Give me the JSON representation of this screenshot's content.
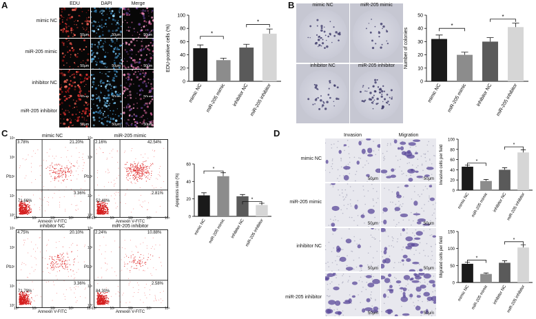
{
  "panels": {
    "A": {
      "letter": "A",
      "columns": [
        "EDU",
        "DAPI",
        "Merge"
      ],
      "rows": [
        "mimic NC",
        "miR-205 mimic",
        "inhibitor NC",
        "miR-205 inhibitor"
      ],
      "scale_label": "50μm"
    },
    "B": {
      "letter": "B",
      "dishes": [
        "mimic NC",
        "miR-205 mimic",
        "inhibitor NC",
        "miR-205 inhibitor"
      ]
    },
    "C": {
      "letter": "C",
      "plots": [
        {
          "title": "mimic NC",
          "ul": "3.78%",
          "ur": "21.20%",
          "lr": "3.36%",
          "ll": "71.66%"
        },
        {
          "title": "miR-205 mimic",
          "ul": "2.16%",
          "ur": "42.54%",
          "lr": "2.81%",
          "ll": "52.48%"
        },
        {
          "title": "inhibitor NC",
          "ul": "4.75%",
          "ur": "20.10%",
          "lr": "3.36%",
          "ll": "71.79%"
        },
        {
          "title": "miR-205 inhibitor",
          "ul": "2.24%",
          "ur": "10.88%",
          "lr": "2.58%",
          "ll": "84.30%"
        }
      ],
      "xlabel": "Annexin V-FITC",
      "ylabel": "PI",
      "ticks": [
        "10⁰",
        "10¹",
        "10²",
        "10³",
        "10⁴"
      ]
    },
    "D": {
      "letter": "D",
      "columns": [
        "Invasion",
        "Migration"
      ],
      "rows": [
        "mimic NC",
        "miR-205 mimic",
        "inhibitor NC",
        "miR-205 inhibitor"
      ],
      "scale_label": "50μm"
    }
  },
  "star": "*",
  "colors": {
    "mimic_nc": "#1a1a1a",
    "mir205_mimic": "#8c8c8c",
    "inhibitor_nc": "#5a5a5a",
    "mir205_inhibitor": "#d6d6d6"
  },
  "chart_data": [
    {
      "type": "bar",
      "categories": [
        "mimic NC",
        "miR-205 mimic",
        "inhibitor NC",
        "miR-205 inhibitor"
      ],
      "values": [
        50,
        32,
        51,
        72
      ],
      "errors": [
        5,
        3,
        5,
        7
      ],
      "ylabel": "EDU-positive cells (%)",
      "ylim": [
        0,
        100
      ],
      "yticks": [
        0,
        20,
        40,
        60,
        80,
        100
      ]
    },
    {
      "type": "bar",
      "categories": [
        "mimic NC",
        "miR-205 mimic",
        "inhibitor NC",
        "miR-205 inhibitor"
      ],
      "values": [
        32,
        20,
        30,
        41
      ],
      "errors": [
        3,
        2,
        3,
        3
      ],
      "ylabel": "Number of colonies",
      "ylim": [
        0,
        50
      ],
      "yticks": [
        0,
        10,
        20,
        30,
        40,
        50
      ]
    },
    {
      "type": "bar",
      "categories": [
        "mimic NC",
        "miR-205 mimic",
        "inhibitor NC",
        "miR-205 inhibitor"
      ],
      "values": [
        24,
        46,
        23,
        13
      ],
      "errors": [
        3,
        4,
        2,
        2
      ],
      "ylabel": "Apoptosis rate (%)",
      "ylim": [
        0,
        60
      ],
      "yticks": [
        0,
        20,
        40,
        60
      ]
    },
    {
      "type": "bar",
      "categories": [
        "mimic NC",
        "miR-205 mimic",
        "inhibitor NC",
        "miR-205 inhibitor"
      ],
      "values": [
        46,
        18,
        40,
        74
      ],
      "errors": [
        3,
        3,
        4,
        5
      ],
      "ylabel": "Invasive cells per field",
      "ylim": [
        0,
        100
      ],
      "yticks": [
        0,
        20,
        40,
        60,
        80,
        100
      ]
    },
    {
      "type": "bar",
      "categories": [
        "mimic NC",
        "miR-205 mimic",
        "inhibitor NC",
        "miR-205 inhibitor"
      ],
      "values": [
        55,
        25,
        58,
        103
      ],
      "errors": [
        5,
        3,
        6,
        8
      ],
      "ylabel": "Migrated cells per field",
      "ylim": [
        0,
        150
      ],
      "yticks": [
        0,
        50,
        100,
        150
      ]
    }
  ]
}
